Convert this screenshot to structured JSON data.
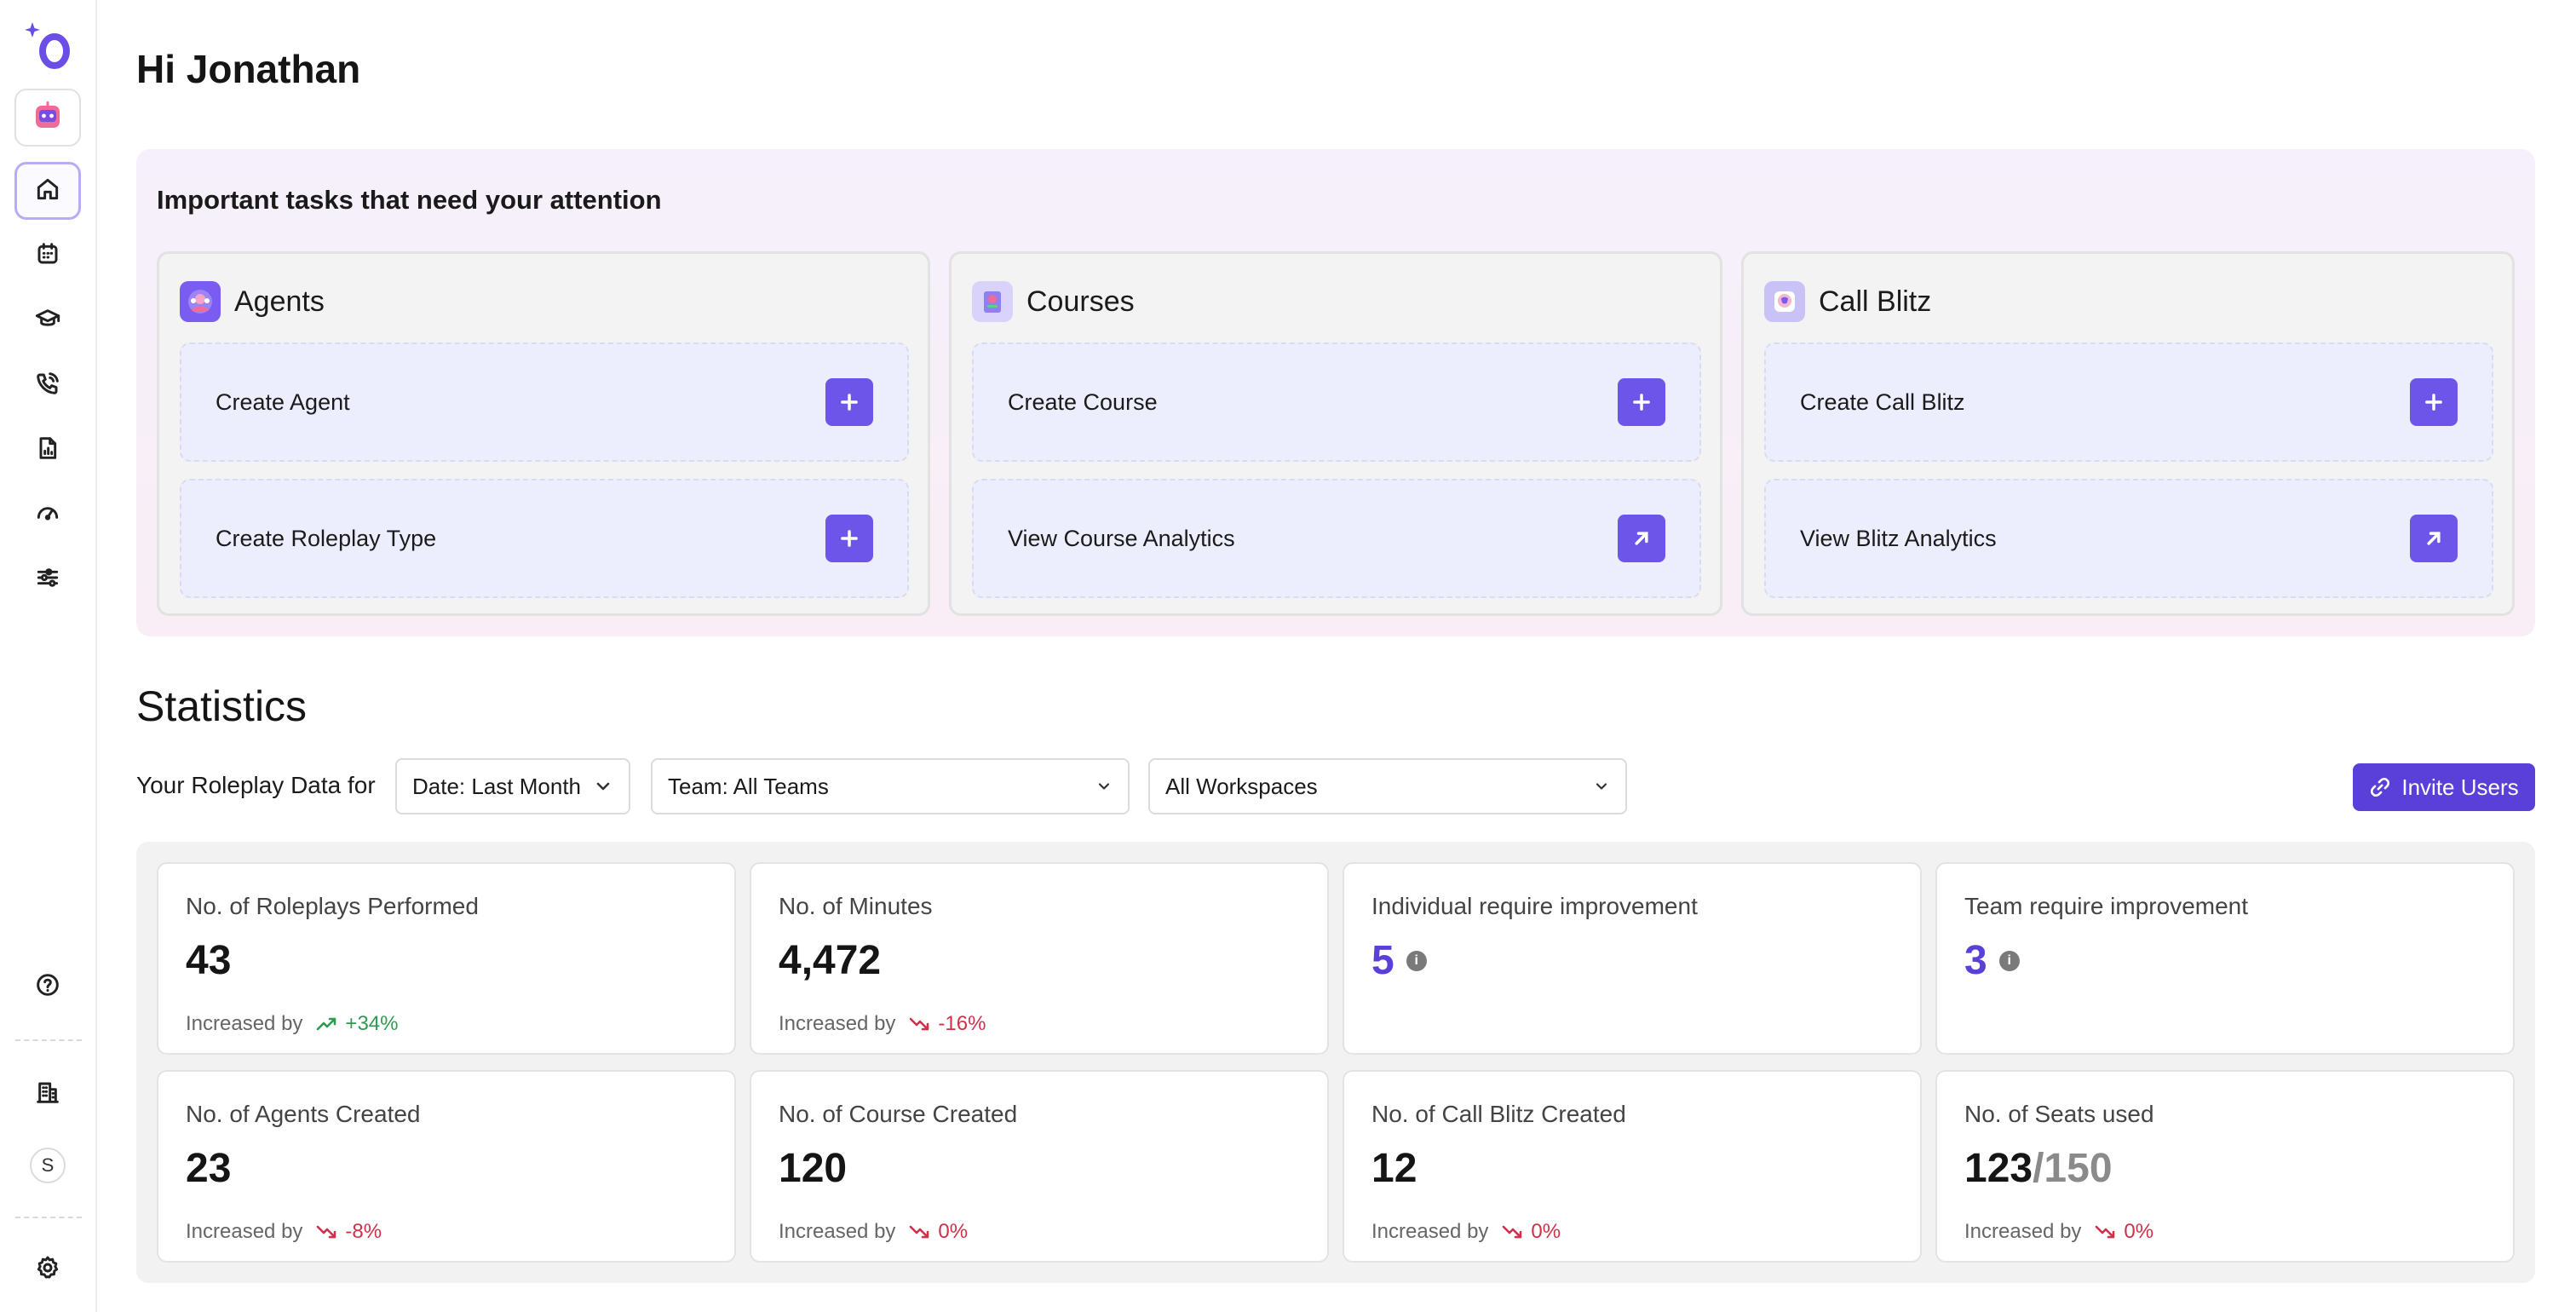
{
  "greeting": "Hi Jonathan",
  "colors": {
    "accent": "#6c55e8",
    "brand": "#5b3fd9",
    "up": "#2e9a52",
    "down": "#d0304a"
  },
  "sidebar": {
    "top_items": [
      {
        "name": "bot",
        "icon": "bot-icon"
      },
      {
        "name": "home",
        "icon": "home-icon",
        "active": true
      },
      {
        "name": "calendar",
        "icon": "calendar-icon"
      },
      {
        "name": "courses",
        "icon": "graduation-cap-icon"
      },
      {
        "name": "calls",
        "icon": "phone-call-icon"
      },
      {
        "name": "reports",
        "icon": "file-chart-icon"
      },
      {
        "name": "performance",
        "icon": "gauge-icon"
      },
      {
        "name": "filters",
        "icon": "sliders-icon"
      }
    ],
    "bottom_items": [
      {
        "name": "help",
        "icon": "help-circle-icon"
      },
      {
        "name": "organization",
        "icon": "building-icon"
      },
      {
        "name": "workspace",
        "label": "S"
      },
      {
        "name": "settings",
        "icon": "gear-icon"
      }
    ]
  },
  "tasks": {
    "title": "Important tasks that need your attention",
    "cards": [
      {
        "title": "Agents",
        "icon": "agents-icon",
        "actions": [
          {
            "label": "Create Agent",
            "icon": "plus-icon"
          },
          {
            "label": "Create Roleplay Type",
            "icon": "plus-icon"
          }
        ]
      },
      {
        "title": "Courses",
        "icon": "courses-icon",
        "actions": [
          {
            "label": "Create Course",
            "icon": "plus-icon"
          },
          {
            "label": "View Course Analytics",
            "icon": "arrow-up-right-icon"
          }
        ]
      },
      {
        "title": "Call Blitz",
        "icon": "call-blitz-icon",
        "actions": [
          {
            "label": "Create Call Blitz",
            "icon": "plus-icon"
          },
          {
            "label": "View Blitz Analytics",
            "icon": "arrow-up-right-icon"
          }
        ]
      }
    ]
  },
  "statistics": {
    "title": "Statistics",
    "filter_label": "Your Roleplay Data for",
    "date_filter": "Date: Last Month",
    "team_filter": "Team: All Teams",
    "workspace_filter": "All Workspaces",
    "invite_label": "Invite Users",
    "cards": [
      {
        "label": "No. of Roleplays Performed",
        "value": "43",
        "trend_label": "Increased by",
        "trend": "+34%",
        "direction": "up"
      },
      {
        "label": "No. of Minutes",
        "value": "4,472",
        "trend_label": "Increased by",
        "trend": "-16%",
        "direction": "down"
      },
      {
        "label": "Individual require improvement",
        "value": "5",
        "info": "i"
      },
      {
        "label": "Team require improvement",
        "value": "3",
        "info": "i"
      },
      {
        "label": "No. of Agents Created",
        "value": "23",
        "trend_label": "Increased by",
        "trend": "-8%",
        "direction": "down"
      },
      {
        "label": "No. of Course Created",
        "value": "120",
        "trend_label": "Increased by",
        "trend": "0%",
        "direction": "down"
      },
      {
        "label": "No. of Call Blitz Created",
        "value": "12",
        "trend_label": "Increased by",
        "trend": "0%",
        "direction": "down"
      },
      {
        "label": "No. of Seats used",
        "value": "123",
        "total": "/150",
        "trend_label": "Increased by",
        "trend": "0%",
        "direction": "down"
      }
    ]
  }
}
